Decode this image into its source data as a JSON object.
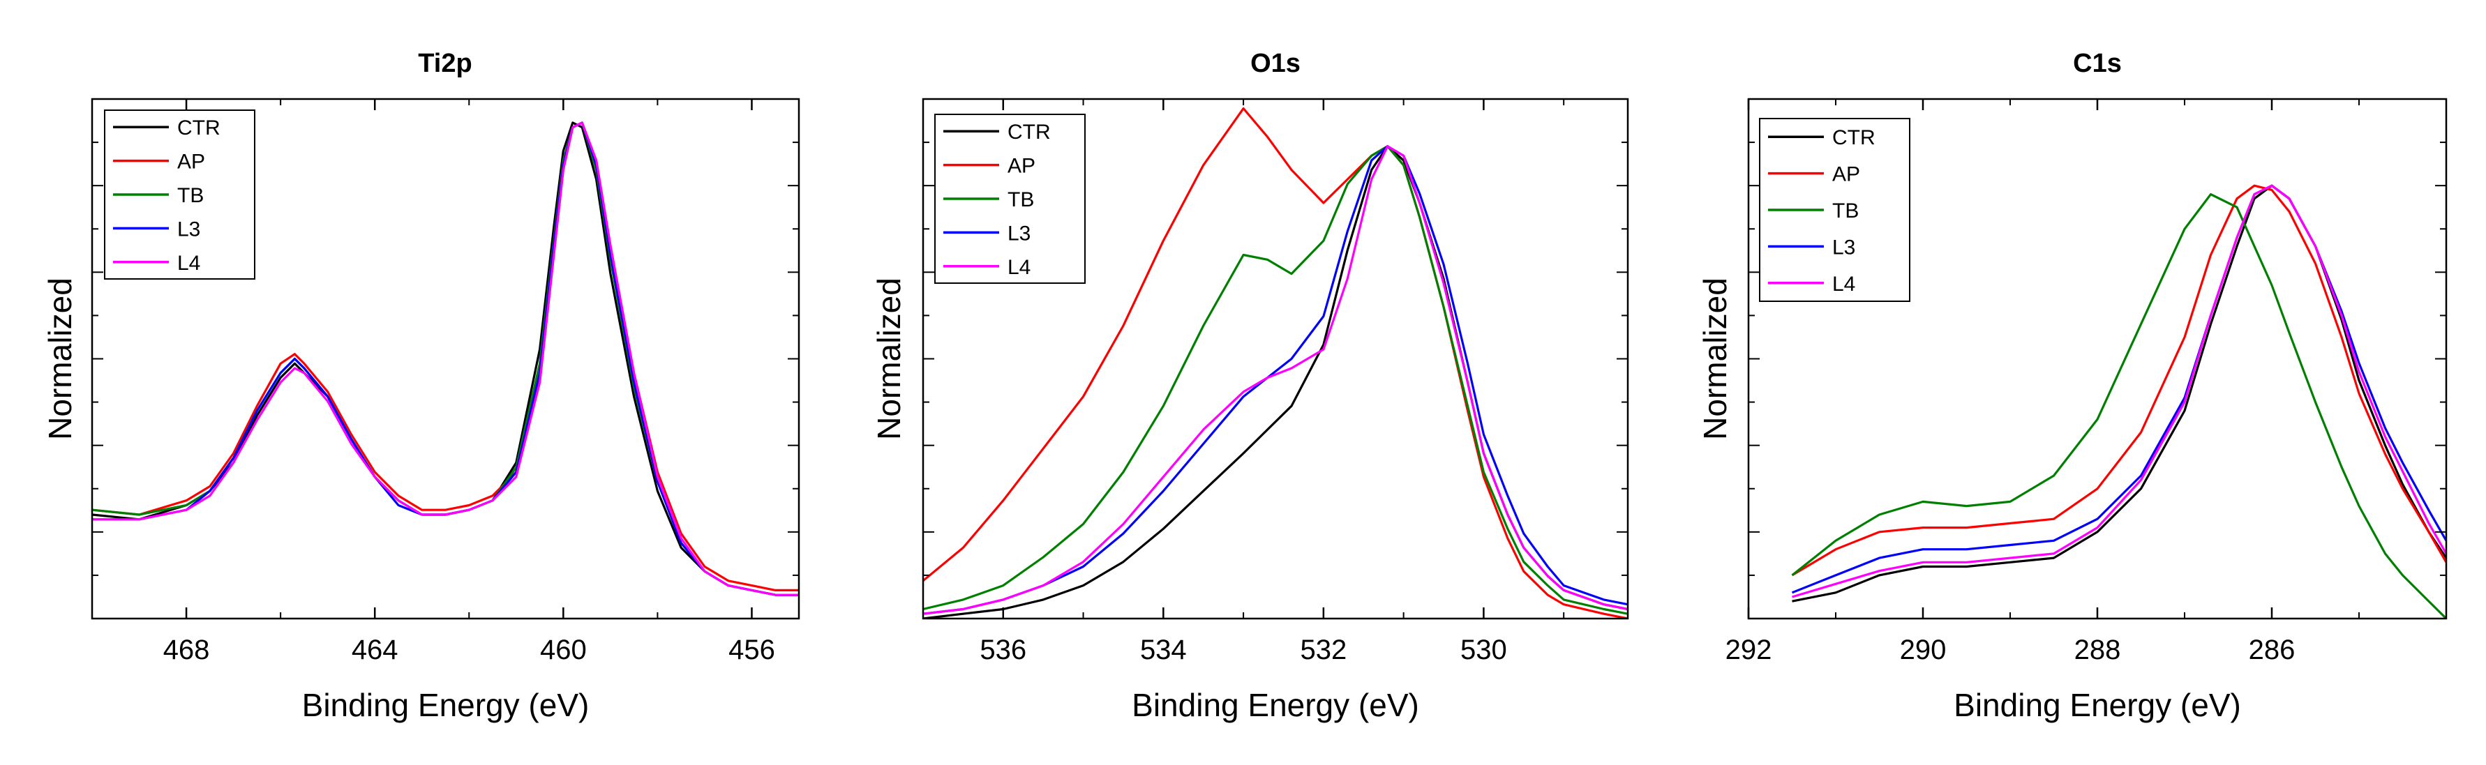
{
  "chart_data": [
    {
      "type": "line",
      "title": "Ti2p",
      "xlabel": "Binding Energy (eV)",
      "ylabel": "Normalized",
      "xlim": [
        470,
        455
      ],
      "ylim": [
        -0.05,
        1.05
      ],
      "x_reversed": true,
      "xticks": [
        468,
        464,
        460,
        456
      ],
      "xtick_labels": [
        "468",
        "464",
        "460",
        "456"
      ],
      "legend": "top-left",
      "series": [
        {
          "name": "CTR",
          "color": "#000000",
          "x": [
            470,
            469,
            468,
            467.5,
            467,
            466.5,
            466,
            465.7,
            465.5,
            465,
            464.5,
            464,
            463.5,
            463,
            462.5,
            462,
            461.5,
            461,
            460.5,
            460.2,
            460,
            459.8,
            459.6,
            459.3,
            459,
            458.5,
            458,
            457.5,
            457,
            456.5,
            456,
            455.5,
            455
          ],
          "y": [
            0.17,
            0.16,
            0.19,
            0.22,
            0.28,
            0.38,
            0.46,
            0.49,
            0.47,
            0.42,
            0.33,
            0.25,
            0.2,
            0.17,
            0.17,
            0.18,
            0.2,
            0.28,
            0.52,
            0.78,
            0.94,
            1.0,
            0.99,
            0.88,
            0.68,
            0.42,
            0.22,
            0.1,
            0.05,
            0.02,
            0.01,
            0.0,
            0.0
          ]
        },
        {
          "name": "AP",
          "color": "#ff0000",
          "x": [
            470,
            469,
            468,
            467.5,
            467,
            466.5,
            466,
            465.7,
            465.5,
            465,
            464.5,
            464,
            463.5,
            463,
            462.5,
            462,
            461.5,
            461,
            460.5,
            460.2,
            460,
            459.8,
            459.6,
            459.3,
            459,
            458.5,
            458,
            457.5,
            457,
            456.5,
            456,
            455.5,
            455
          ],
          "y": [
            0.18,
            0.17,
            0.2,
            0.23,
            0.3,
            0.4,
            0.49,
            0.51,
            0.49,
            0.43,
            0.34,
            0.26,
            0.21,
            0.18,
            0.18,
            0.19,
            0.21,
            0.26,
            0.45,
            0.72,
            0.9,
            0.99,
            1.0,
            0.92,
            0.74,
            0.47,
            0.26,
            0.13,
            0.06,
            0.03,
            0.02,
            0.01,
            0.01
          ]
        },
        {
          "name": "TB",
          "color": "#008000",
          "x": [
            470,
            469,
            468,
            467.5,
            467,
            466.5,
            466,
            465.7,
            465.5,
            465,
            464.5,
            464,
            463.5,
            463,
            462.5,
            462,
            461.5,
            461,
            460.5,
            460.2,
            460,
            459.8,
            459.6,
            459.3,
            459,
            458.5,
            458,
            457.5,
            457,
            456.5,
            456,
            455.5,
            455
          ],
          "y": [
            0.18,
            0.17,
            0.19,
            0.22,
            0.29,
            0.39,
            0.47,
            0.5,
            0.48,
            0.42,
            0.33,
            0.25,
            0.2,
            0.17,
            0.17,
            0.18,
            0.2,
            0.27,
            0.49,
            0.75,
            0.92,
            0.99,
            1.0,
            0.9,
            0.71,
            0.44,
            0.24,
            0.11,
            0.05,
            0.02,
            0.01,
            0.0,
            0.0
          ]
        },
        {
          "name": "L3",
          "color": "#0000ff",
          "x": [
            470,
            469,
            468,
            467.5,
            467,
            466.5,
            466,
            465.7,
            465.5,
            465,
            464.5,
            464,
            463.5,
            463,
            462.5,
            462,
            461.5,
            461,
            460.5,
            460.2,
            460,
            459.8,
            459.6,
            459.3,
            459,
            458.5,
            458,
            457.5,
            457,
            456.5,
            456,
            455.5,
            455
          ],
          "y": [
            0.16,
            0.16,
            0.18,
            0.22,
            0.29,
            0.39,
            0.47,
            0.5,
            0.48,
            0.42,
            0.33,
            0.25,
            0.19,
            0.17,
            0.17,
            0.18,
            0.2,
            0.26,
            0.47,
            0.74,
            0.91,
            0.99,
            1.0,
            0.91,
            0.72,
            0.45,
            0.24,
            0.11,
            0.05,
            0.02,
            0.01,
            0.0,
            0.0
          ]
        },
        {
          "name": "L4",
          "color": "#ff00ff",
          "x": [
            470,
            469,
            468,
            467.5,
            467,
            466.5,
            466,
            465.7,
            465.5,
            465,
            464.5,
            464,
            463.5,
            463,
            462.5,
            462,
            461.5,
            461,
            460.5,
            460.2,
            460,
            459.8,
            459.6,
            459.3,
            459,
            458.5,
            458,
            457.5,
            457,
            456.5,
            456,
            455.5,
            455
          ],
          "y": [
            0.16,
            0.16,
            0.18,
            0.21,
            0.28,
            0.37,
            0.45,
            0.48,
            0.47,
            0.41,
            0.32,
            0.25,
            0.2,
            0.17,
            0.17,
            0.18,
            0.2,
            0.25,
            0.45,
            0.72,
            0.9,
            0.99,
            1.0,
            0.92,
            0.74,
            0.47,
            0.25,
            0.12,
            0.05,
            0.02,
            0.01,
            0.0,
            0.0
          ]
        }
      ]
    },
    {
      "type": "line",
      "title": "O1s",
      "xlabel": "Binding Energy (eV)",
      "ylabel": "Normalized",
      "xlim": [
        537,
        528.2
      ],
      "ylim": [
        0,
        1.1
      ],
      "x_reversed": true,
      "xticks": [
        536,
        534,
        532,
        530
      ],
      "xtick_labels": [
        "536",
        "534",
        "532",
        "530"
      ],
      "legend": "top-left",
      "series": [
        {
          "name": "CTR",
          "color": "#000000",
          "x": [
            537,
            536.5,
            536,
            535.5,
            535,
            534.5,
            534,
            533.5,
            533,
            532.7,
            532.4,
            532,
            531.7,
            531.4,
            531.2,
            531,
            530.8,
            530.5,
            530.2,
            530,
            529.7,
            529.5,
            529.2,
            529,
            528.5,
            528.2
          ],
          "y": [
            0.0,
            0.01,
            0.02,
            0.04,
            0.07,
            0.12,
            0.19,
            0.27,
            0.35,
            0.4,
            0.45,
            0.58,
            0.78,
            0.95,
            1.0,
            0.97,
            0.88,
            0.72,
            0.5,
            0.35,
            0.22,
            0.15,
            0.09,
            0.06,
            0.03,
            0.02
          ]
        },
        {
          "name": "AP",
          "color": "#ff0000",
          "x": [
            537,
            536.5,
            536,
            535.5,
            535,
            534.5,
            534,
            533.5,
            533,
            532.7,
            532.4,
            532,
            531.7,
            531.4,
            531.2,
            531,
            530.8,
            530.5,
            530.2,
            530,
            529.7,
            529.5,
            529.2,
            529,
            528.5,
            528.2
          ],
          "y": [
            0.08,
            0.15,
            0.25,
            0.36,
            0.47,
            0.62,
            0.8,
            0.96,
            1.08,
            1.02,
            0.95,
            0.88,
            0.93,
            0.98,
            1.0,
            0.96,
            0.85,
            0.66,
            0.44,
            0.3,
            0.17,
            0.1,
            0.05,
            0.03,
            0.01,
            0.0
          ]
        },
        {
          "name": "TB",
          "color": "#008000",
          "x": [
            537,
            536.5,
            536,
            535.5,
            535,
            534.5,
            534,
            533.5,
            533,
            532.7,
            532.4,
            532,
            531.7,
            531.4,
            531.2,
            531,
            530.8,
            530.5,
            530.2,
            530,
            529.7,
            529.5,
            529.2,
            529,
            528.5,
            528.2
          ],
          "y": [
            0.02,
            0.04,
            0.07,
            0.13,
            0.2,
            0.31,
            0.45,
            0.62,
            0.77,
            0.76,
            0.73,
            0.8,
            0.92,
            0.98,
            1.0,
            0.96,
            0.85,
            0.66,
            0.45,
            0.31,
            0.19,
            0.12,
            0.07,
            0.04,
            0.02,
            0.01
          ]
        },
        {
          "name": "L3",
          "color": "#0000ff",
          "x": [
            537,
            536.5,
            536,
            535.5,
            535,
            534.5,
            534,
            533.5,
            533,
            532.7,
            532.4,
            532,
            531.7,
            531.4,
            531.2,
            531,
            530.8,
            530.5,
            530.2,
            530,
            529.7,
            529.5,
            529.2,
            529,
            528.5,
            528.2
          ],
          "y": [
            0.01,
            0.02,
            0.04,
            0.07,
            0.11,
            0.18,
            0.27,
            0.37,
            0.47,
            0.51,
            0.55,
            0.64,
            0.82,
            0.97,
            1.0,
            0.98,
            0.9,
            0.75,
            0.54,
            0.39,
            0.26,
            0.18,
            0.11,
            0.07,
            0.04,
            0.03
          ]
        },
        {
          "name": "L4",
          "color": "#ff00ff",
          "x": [
            537,
            536.5,
            536,
            535.5,
            535,
            534.5,
            534,
            533.5,
            533,
            532.7,
            532.4,
            532,
            531.7,
            531.4,
            531.2,
            531,
            530.8,
            530.5,
            530.2,
            530,
            529.7,
            529.5,
            529.2,
            529,
            528.5,
            528.2
          ],
          "y": [
            0.01,
            0.02,
            0.04,
            0.07,
            0.12,
            0.2,
            0.3,
            0.4,
            0.48,
            0.51,
            0.53,
            0.57,
            0.72,
            0.93,
            1.0,
            0.98,
            0.88,
            0.71,
            0.5,
            0.35,
            0.22,
            0.15,
            0.09,
            0.06,
            0.03,
            0.02
          ]
        }
      ]
    },
    {
      "type": "line",
      "title": "C1s",
      "xlabel": "Binding Energy (eV)",
      "ylabel": "Normalized",
      "xlim": [
        292,
        284
      ],
      "ylim": [
        0,
        1.2
      ],
      "x_reversed": true,
      "xticks": [
        292,
        290,
        288,
        286
      ],
      "xtick_labels": [
        "292",
        "290",
        "288",
        "286"
      ],
      "legend": "top-left",
      "series": [
        {
          "name": "CTR",
          "color": "#000000",
          "x": [
            291.5,
            291,
            290.5,
            290,
            289.5,
            289,
            288.5,
            288,
            287.5,
            287,
            286.7,
            286.4,
            286.2,
            286,
            285.8,
            285.5,
            285.2,
            285,
            284.7,
            284.5,
            284.2,
            284
          ],
          "y": [
            0.04,
            0.06,
            0.1,
            0.12,
            0.12,
            0.13,
            0.14,
            0.2,
            0.3,
            0.48,
            0.68,
            0.86,
            0.97,
            1.0,
            0.97,
            0.86,
            0.69,
            0.55,
            0.4,
            0.31,
            0.2,
            0.14
          ]
        },
        {
          "name": "AP",
          "color": "#ff0000",
          "x": [
            291.5,
            291,
            290.5,
            290,
            289.5,
            289,
            288.5,
            288,
            287.5,
            287,
            286.7,
            286.4,
            286.2,
            286,
            285.8,
            285.5,
            285.2,
            285,
            284.7,
            284.5,
            284.2,
            284
          ],
          "y": [
            0.1,
            0.16,
            0.2,
            0.21,
            0.21,
            0.22,
            0.23,
            0.3,
            0.43,
            0.65,
            0.84,
            0.97,
            1.0,
            0.99,
            0.94,
            0.82,
            0.65,
            0.52,
            0.38,
            0.3,
            0.2,
            0.13
          ]
        },
        {
          "name": "TB",
          "color": "#008000",
          "x": [
            291.5,
            291,
            290.5,
            290,
            289.5,
            289,
            288.5,
            288,
            287.5,
            287,
            286.7,
            286.4,
            286.2,
            286,
            285.8,
            285.5,
            285.2,
            285,
            284.7,
            284.5,
            284.2,
            284
          ],
          "y": [
            0.1,
            0.18,
            0.24,
            0.27,
            0.26,
            0.27,
            0.33,
            0.46,
            0.68,
            0.9,
            0.98,
            0.95,
            0.86,
            0.77,
            0.66,
            0.5,
            0.35,
            0.26,
            0.15,
            0.1,
            0.04,
            0.0
          ]
        },
        {
          "name": "L3",
          "color": "#0000ff",
          "x": [
            291.5,
            291,
            290.5,
            290,
            289.5,
            289,
            288.5,
            288,
            287.5,
            287,
            286.7,
            286.4,
            286.2,
            286,
            285.8,
            285.5,
            285.2,
            285,
            284.7,
            284.5,
            284.2,
            284
          ],
          "y": [
            0.06,
            0.1,
            0.14,
            0.16,
            0.16,
            0.17,
            0.18,
            0.23,
            0.33,
            0.51,
            0.7,
            0.88,
            0.98,
            1.0,
            0.97,
            0.86,
            0.71,
            0.59,
            0.44,
            0.36,
            0.25,
            0.18
          ]
        },
        {
          "name": "L4",
          "color": "#ff00ff",
          "x": [
            291.5,
            291,
            290.5,
            290,
            289.5,
            289,
            288.5,
            288,
            287.5,
            287,
            286.7,
            286.4,
            286.2,
            286,
            285.8,
            285.5,
            285.2,
            285,
            284.7,
            284.5,
            284.2,
            284
          ],
          "y": [
            0.05,
            0.08,
            0.11,
            0.13,
            0.13,
            0.14,
            0.15,
            0.21,
            0.32,
            0.5,
            0.7,
            0.88,
            0.98,
            1.0,
            0.97,
            0.86,
            0.7,
            0.57,
            0.42,
            0.34,
            0.22,
            0.15
          ]
        }
      ]
    }
  ]
}
